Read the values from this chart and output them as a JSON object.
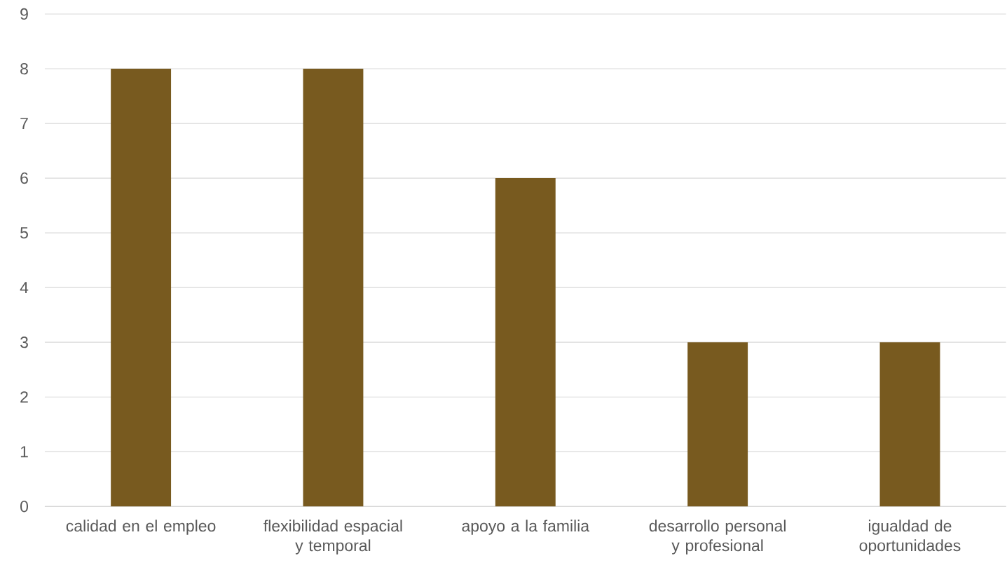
{
  "chart_data": {
    "type": "bar",
    "categories": [
      "calidad en el empleo",
      "flexibilidad espacial y temporal",
      "apoyo a la familia",
      "desarrollo personal y profesional",
      "igualdad de oportunidades"
    ],
    "values": [
      8,
      8,
      6,
      3,
      3
    ],
    "color": "#785a1f",
    "ylim": [
      0,
      9
    ],
    "yticks": [
      0,
      1,
      2,
      3,
      4,
      5,
      6,
      7,
      8,
      9
    ],
    "grid": "y"
  }
}
